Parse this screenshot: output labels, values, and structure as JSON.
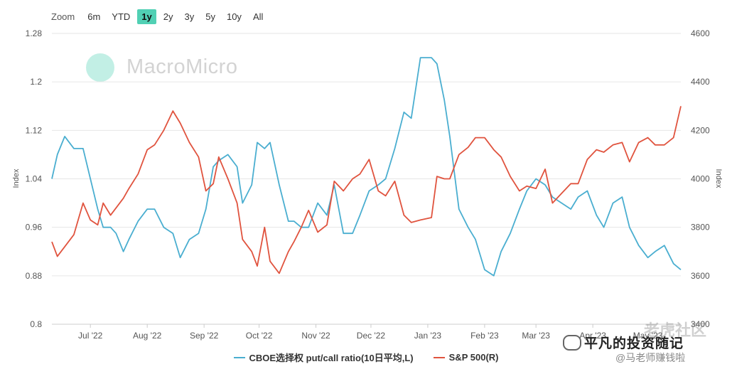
{
  "toolbar": {
    "zoom_label": "Zoom",
    "ranges": [
      "6m",
      "YTD",
      "1y",
      "2y",
      "3y",
      "5y",
      "10y",
      "All"
    ],
    "active_range": "1y"
  },
  "watermark": {
    "brand": "MacroMicro"
  },
  "overlay": {
    "author": "平凡的投资随记",
    "sub": "@马老师赚钱啦",
    "corner": "老虎社区"
  },
  "chart_data": {
    "type": "line",
    "x_ticks": [
      "Jul '22",
      "Aug '22",
      "Sep '22",
      "Oct '22",
      "Nov '22",
      "Dec '22",
      "Jan '23",
      "Feb '23",
      "Mar '23",
      "Apr '23",
      "May '23"
    ],
    "left_axis": {
      "label": "Index",
      "ticks": [
        "0.8",
        "0.88",
        "0.96",
        "1.04",
        "1.12",
        "1.2",
        "1.28"
      ],
      "range": [
        0.8,
        1.28
      ]
    },
    "right_axis": {
      "label": "Index",
      "ticks": [
        "3400",
        "3600",
        "3800",
        "4000",
        "4200",
        "4400",
        "4600"
      ],
      "range": [
        3400,
        4600
      ]
    },
    "grid": true,
    "legend_position": "bottom",
    "series": [
      {
        "name": "CBOE选择权 put/call ratio(10日平均,L)",
        "axis": "left",
        "color": "#4aaed0",
        "dates": [
          "2022-06-10",
          "2022-06-13",
          "2022-06-17",
          "2022-06-22",
          "2022-06-27",
          "2022-07-01",
          "2022-07-05",
          "2022-07-08",
          "2022-07-12",
          "2022-07-15",
          "2022-07-19",
          "2022-07-22",
          "2022-07-27",
          "2022-08-01",
          "2022-08-05",
          "2022-08-10",
          "2022-08-15",
          "2022-08-19",
          "2022-08-24",
          "2022-08-29",
          "2022-09-02",
          "2022-09-06",
          "2022-09-09",
          "2022-09-14",
          "2022-09-19",
          "2022-09-22",
          "2022-09-27",
          "2022-09-30",
          "2022-10-04",
          "2022-10-07",
          "2022-10-12",
          "2022-10-17",
          "2022-10-20",
          "2022-10-24",
          "2022-10-28",
          "2022-11-02",
          "2022-11-07",
          "2022-11-11",
          "2022-11-16",
          "2022-11-21",
          "2022-11-25",
          "2022-11-30",
          "2022-12-05",
          "2022-12-09",
          "2022-12-14",
          "2022-12-19",
          "2022-12-23",
          "2022-12-28",
          "2023-01-03",
          "2023-01-06",
          "2023-01-10",
          "2023-01-13",
          "2023-01-18",
          "2023-01-23",
          "2023-01-27",
          "2023-02-01",
          "2023-02-06",
          "2023-02-10",
          "2023-02-15",
          "2023-02-20",
          "2023-02-24",
          "2023-03-01",
          "2023-03-06",
          "2023-03-10",
          "2023-03-15",
          "2023-03-20",
          "2023-03-24",
          "2023-03-29",
          "2023-04-03",
          "2023-04-07",
          "2023-04-12",
          "2023-04-17",
          "2023-04-21",
          "2023-04-26",
          "2023-05-01",
          "2023-05-05",
          "2023-05-10",
          "2023-05-15",
          "2023-05-19"
        ],
        "values": [
          1.04,
          1.08,
          1.11,
          1.09,
          1.09,
          1.04,
          0.99,
          0.96,
          0.96,
          0.95,
          0.92,
          0.94,
          0.97,
          0.99,
          0.99,
          0.96,
          0.95,
          0.91,
          0.94,
          0.95,
          0.99,
          1.06,
          1.07,
          1.08,
          1.06,
          1.0,
          1.03,
          1.1,
          1.09,
          1.1,
          1.03,
          0.97,
          0.97,
          0.96,
          0.96,
          1.0,
          0.98,
          1.03,
          0.95,
          0.95,
          0.98,
          1.02,
          1.03,
          1.04,
          1.09,
          1.15,
          1.14,
          1.24,
          1.24,
          1.23,
          1.17,
          1.11,
          0.99,
          0.96,
          0.94,
          0.89,
          0.88,
          0.92,
          0.95,
          0.99,
          1.02,
          1.04,
          1.03,
          1.01,
          1.0,
          0.99,
          1.01,
          1.02,
          0.98,
          0.96,
          1.0,
          1.01,
          0.96,
          0.93,
          0.91,
          0.92,
          0.93,
          0.9,
          0.89
        ]
      },
      {
        "name": "S&P 500(R)",
        "axis": "right",
        "color": "#e0533e",
        "dates": [
          "2022-06-10",
          "2022-06-13",
          "2022-06-17",
          "2022-06-22",
          "2022-06-27",
          "2022-07-01",
          "2022-07-05",
          "2022-07-08",
          "2022-07-12",
          "2022-07-15",
          "2022-07-19",
          "2022-07-22",
          "2022-07-27",
          "2022-08-01",
          "2022-08-05",
          "2022-08-10",
          "2022-08-15",
          "2022-08-19",
          "2022-08-24",
          "2022-08-29",
          "2022-09-02",
          "2022-09-06",
          "2022-09-09",
          "2022-09-14",
          "2022-09-19",
          "2022-09-22",
          "2022-09-27",
          "2022-09-30",
          "2022-10-04",
          "2022-10-07",
          "2022-10-12",
          "2022-10-17",
          "2022-10-20",
          "2022-10-24",
          "2022-10-28",
          "2022-11-02",
          "2022-11-07",
          "2022-11-11",
          "2022-11-16",
          "2022-11-21",
          "2022-11-25",
          "2022-11-30",
          "2022-12-05",
          "2022-12-09",
          "2022-12-14",
          "2022-12-19",
          "2022-12-23",
          "2022-12-28",
          "2023-01-03",
          "2023-01-06",
          "2023-01-10",
          "2023-01-13",
          "2023-01-18",
          "2023-01-23",
          "2023-01-27",
          "2023-02-01",
          "2023-02-06",
          "2023-02-10",
          "2023-02-15",
          "2023-02-20",
          "2023-02-24",
          "2023-03-01",
          "2023-03-06",
          "2023-03-10",
          "2023-03-15",
          "2023-03-20",
          "2023-03-24",
          "2023-03-29",
          "2023-04-03",
          "2023-04-07",
          "2023-04-12",
          "2023-04-17",
          "2023-04-21",
          "2023-04-26",
          "2023-05-01",
          "2023-05-05",
          "2023-05-10",
          "2023-05-15",
          "2023-05-19"
        ],
        "values": [
          3740,
          3680,
          3720,
          3770,
          3900,
          3830,
          3810,
          3900,
          3850,
          3880,
          3920,
          3960,
          4020,
          4120,
          4140,
          4200,
          4280,
          4230,
          4150,
          4090,
          3950,
          3980,
          4090,
          4000,
          3900,
          3750,
          3700,
          3640,
          3800,
          3660,
          3610,
          3700,
          3740,
          3800,
          3870,
          3780,
          3810,
          3990,
          3950,
          4000,
          4020,
          4080,
          3950,
          3930,
          3990,
          3850,
          3820,
          3830,
          3840,
          4010,
          4000,
          4000,
          4100,
          4130,
          4170,
          4170,
          4120,
          4090,
          4010,
          3950,
          3970,
          3960,
          4040,
          3900,
          3940,
          3980,
          3980,
          4080,
          4120,
          4110,
          4140,
          4150,
          4070,
          4150,
          4170,
          4140,
          4140,
          4170,
          4300
        ]
      }
    ]
  }
}
